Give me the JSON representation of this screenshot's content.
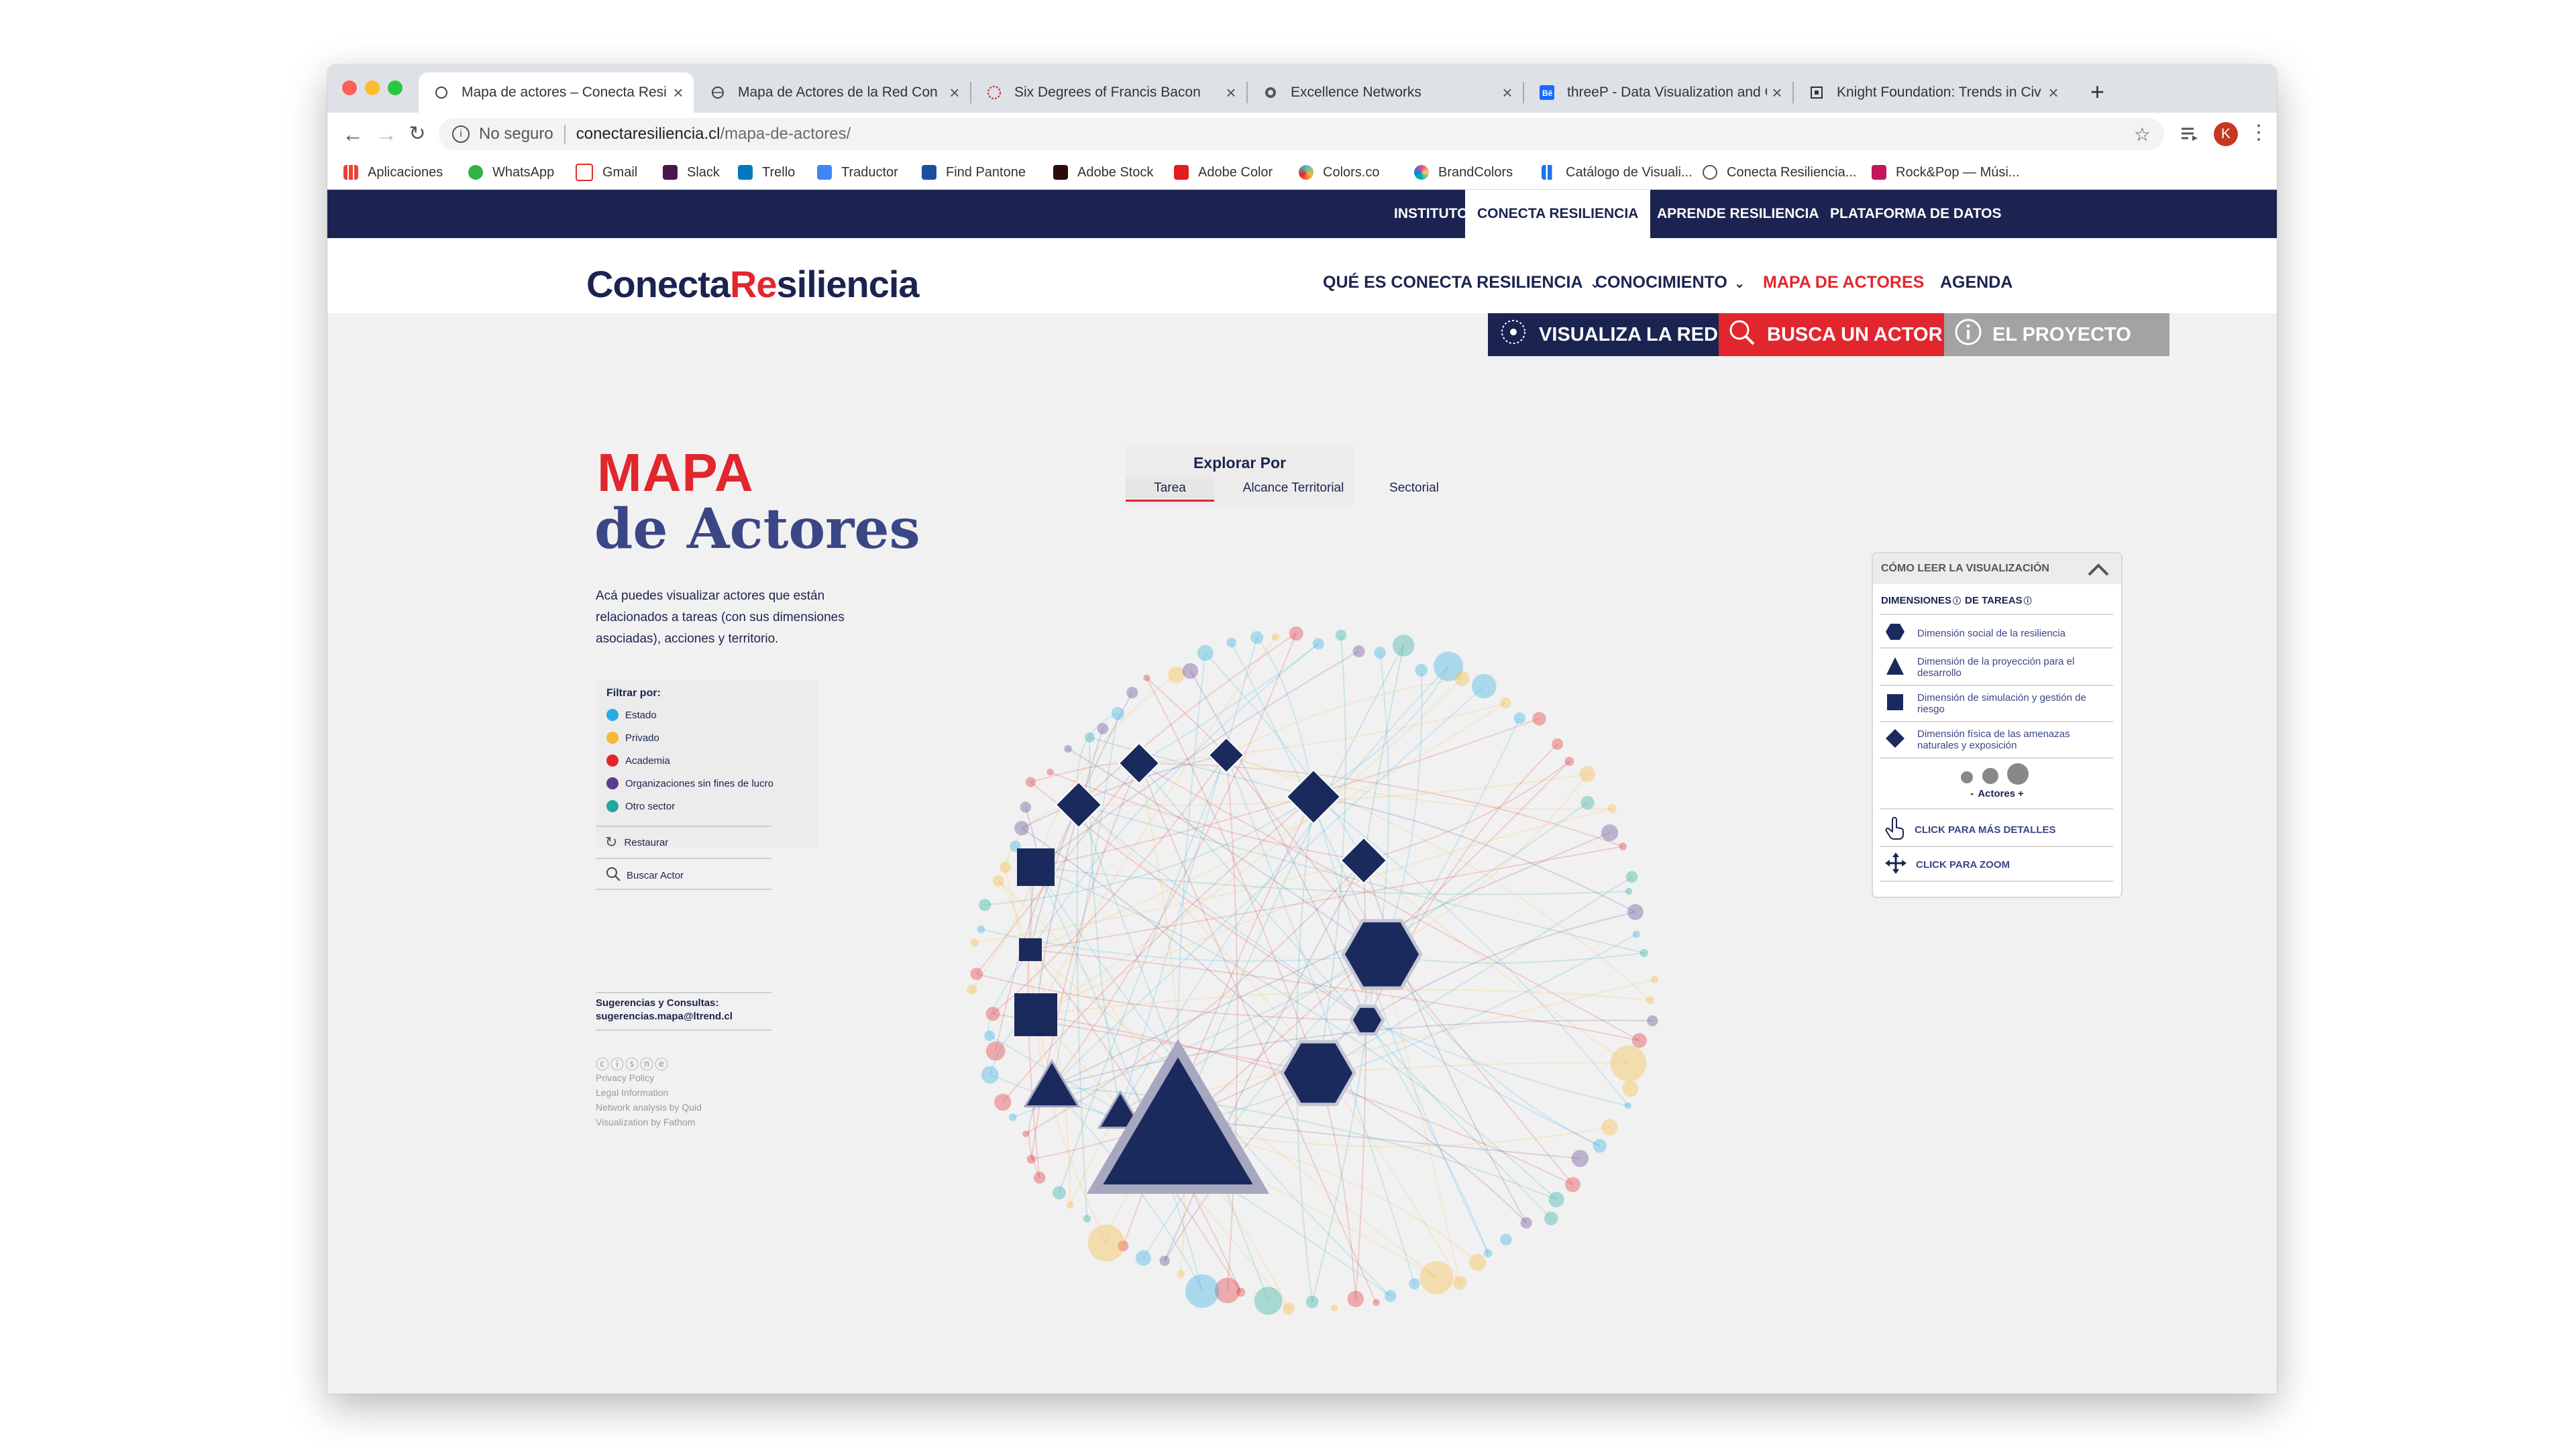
{
  "browser": {
    "tabs": [
      {
        "label": "Mapa de actores – Conecta Resi",
        "active": true,
        "icon": "globe-icon"
      },
      {
        "label": "Mapa de Actores de la Red Con",
        "active": false,
        "icon": "globe-icon"
      },
      {
        "label": "Six Degrees of Francis Bacon",
        "active": false,
        "icon": "bacon-site-icon"
      },
      {
        "label": "Excellence Networks",
        "active": false,
        "icon": "globe-icon"
      },
      {
        "label": "threeP - Data Visualization and C",
        "active": false,
        "icon": "behance-icon"
      },
      {
        "label": "Knight Foundation: Trends in Civ",
        "active": false,
        "icon": "knight-icon"
      }
    ],
    "tab_close": "×",
    "new_tab": "+",
    "security": "No seguro",
    "url_domain": "conectaresiliencia.cl",
    "url_path": "/mapa-de-actores/",
    "profile_initial": "K",
    "bookmarks": [
      {
        "label": "Aplicaciones",
        "color": "#4285f4"
      },
      {
        "label": "WhatsApp",
        "color": "#2fb344"
      },
      {
        "label": "Gmail",
        "color": "#d93025"
      },
      {
        "label": "Slack",
        "color": "#4a154b"
      },
      {
        "label": "Trello",
        "color": "#0079bf"
      },
      {
        "label": "Traductor",
        "color": "#4285f4"
      },
      {
        "label": "Find Pantone",
        "color": "#1b4f9c"
      },
      {
        "label": "Adobe Stock",
        "color": "#9b1c1c"
      },
      {
        "label": "Adobe Color",
        "color": "#e31b23"
      },
      {
        "label": "Colors.co",
        "color": "#4bc0c8"
      },
      {
        "label": "BrandColors",
        "color": "#e84393"
      },
      {
        "label": "Catálogo de Visuali...",
        "color": "#1a73e8"
      },
      {
        "label": "Conecta Resiliencia...",
        "color": "#555555"
      },
      {
        "label": "Rock&Pop — Músi...",
        "color": "#c2185b"
      }
    ]
  },
  "site": {
    "topnav": [
      {
        "label": "INSTITUTO",
        "selected": false
      },
      {
        "label": "CONECTA RESILIENCIA",
        "selected": true
      },
      {
        "label": "APRENDE RESILIENCIA",
        "selected": false
      },
      {
        "label": "PLATAFORMA DE DATOS",
        "selected": false
      }
    ],
    "logo_a": "Conecta",
    "logo_b": "Re",
    "logo_c": "siliencia",
    "mainnav": [
      {
        "label": "QUÉ ES CONECTA RESILIENCIA",
        "dropdown": true
      },
      {
        "label": "CONOCIMIENTO",
        "dropdown": true
      },
      {
        "label": "MAPA DE ACTORES",
        "dropdown": false,
        "active": true
      },
      {
        "label": "AGENDA",
        "dropdown": false
      }
    ],
    "buttons": [
      {
        "label": "VISUALIZA LA RED",
        "color": "#1b2450"
      },
      {
        "label": "BUSCA UN ACTOR",
        "color": "#e2262e"
      },
      {
        "label": "EL PROYECTO",
        "color": "#a3a3a3"
      }
    ]
  },
  "content": {
    "title_line1": "MAPA",
    "title_line2": "de Actores",
    "description": "Acá puedes visualizar actores que están relacionados a tareas (con sus dimensiones asociadas), acciones y territorio.",
    "filter_title": "Filtrar por:",
    "filters": [
      {
        "label": "Estado",
        "color": "#29abe2"
      },
      {
        "label": "Privado",
        "color": "#f7b733"
      },
      {
        "label": "Academia",
        "color": "#e2262e"
      },
      {
        "label": "Organizaciones sin fines de lucro",
        "color": "#5b3c8c"
      },
      {
        "label": "Otro sector",
        "color": "#20a89a"
      }
    ],
    "restore_label": "Restaurar",
    "search_label": "Buscar Actor",
    "suggestions_title": "Sugerencias y Consultas:",
    "suggestions_email": "sugerencias.mapa@ltrend.cl",
    "cc_icons": "ⓒⓘⓢⓝⓔ",
    "footer_links": [
      "Privacy Policy",
      "Legal Information",
      "Network analysis by Quid",
      "Visualization by Fathom"
    ],
    "explore_title": "Explorar Por",
    "explore_tabs": [
      {
        "label": "Tarea",
        "selected": true
      },
      {
        "label": "Alcance Territorial",
        "selected": false
      },
      {
        "label": "Sectorial",
        "selected": false
      }
    ]
  },
  "legend": {
    "title": "CÓMO LEER LA VISUALIZACIÓN",
    "dims_label": "DIMENSIONES",
    "tasks_label": "DE TAREAS",
    "items": [
      {
        "label": "Dimensión social de la resiliencia",
        "shape": "hexagon-icon"
      },
      {
        "label": "Dimensión de la proyección para el desarrollo",
        "shape": "triangle-icon"
      },
      {
        "label": "Dimensión de simulación y gestión de riesgo",
        "shape": "square-icon"
      },
      {
        "label": "Dimensión física de las amenazas naturales y exposición",
        "shape": "diamond-icon"
      }
    ],
    "minus": "-",
    "actors_label": "Actores",
    "plus": "+",
    "click_details": "CLICK PARA MÁS DETALLES",
    "click_zoom": "CLICK PARA ZOOM"
  },
  "network": {
    "tasks": [
      {
        "shape": "diamond",
        "size": "small"
      },
      {
        "shape": "diamond",
        "size": "small"
      },
      {
        "shape": "diamond",
        "size": "medium"
      },
      {
        "shape": "diamond",
        "size": "medium"
      },
      {
        "shape": "diamond",
        "size": "medium"
      },
      {
        "shape": "square",
        "size": "medium"
      },
      {
        "shape": "square",
        "size": "small"
      },
      {
        "shape": "square",
        "size": "medium"
      },
      {
        "shape": "hexagon",
        "size": "large"
      },
      {
        "shape": "hexagon",
        "size": "small"
      },
      {
        "shape": "hexagon",
        "size": "large"
      },
      {
        "shape": "triangle",
        "size": "medium"
      },
      {
        "shape": "triangle",
        "size": "small"
      },
      {
        "shape": "triangle",
        "size": "xlarge"
      }
    ],
    "actor_colors": [
      "#29abe2",
      "#f7b733",
      "#e2262e",
      "#5b3c8c",
      "#20a89a"
    ],
    "task_color": "#1b2a5c"
  }
}
